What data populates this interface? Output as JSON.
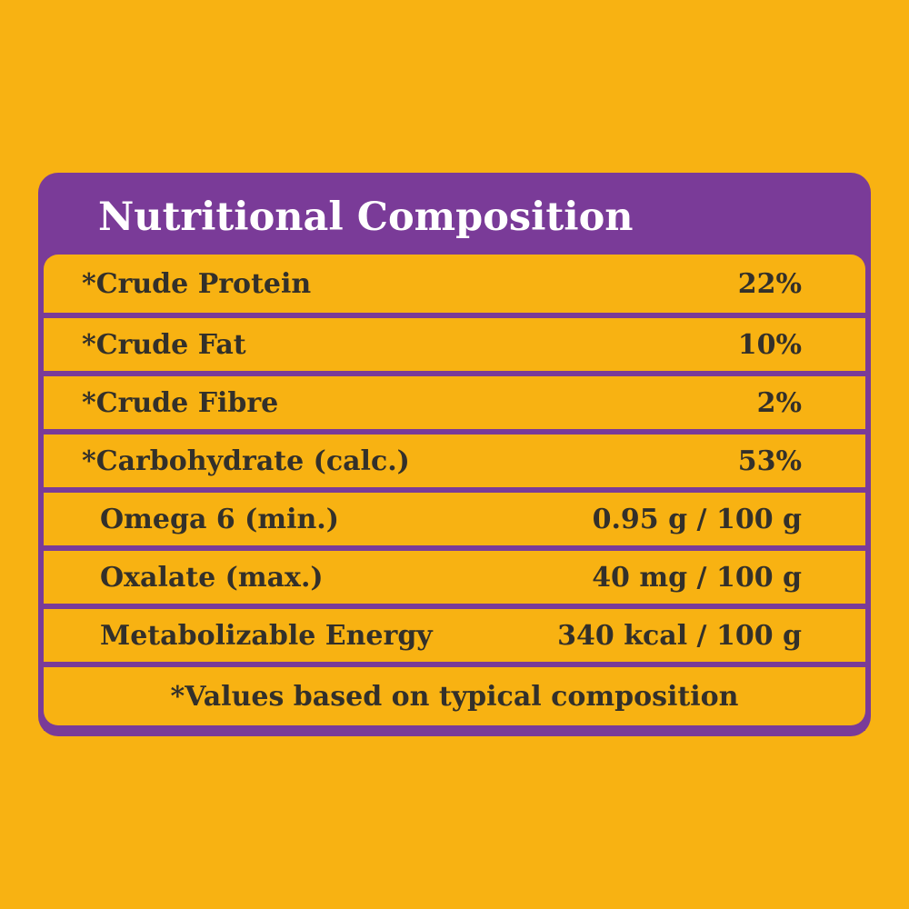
{
  "panel": {
    "title": "Nutritional Composition"
  },
  "rows": [
    {
      "label": "*Crude Protein",
      "value": "22%"
    },
    {
      "label": "*Crude Fat",
      "value": "10%"
    },
    {
      "label": "*Crude Fibre",
      "value": "2%"
    },
    {
      "label": "*Carbohydrate (calc.)",
      "value": "53%"
    },
    {
      "label": "Omega 6 (min.)",
      "value": "0.95 g / 100 g"
    },
    {
      "label": "Oxalate (max.)",
      "value": "40 mg / 100 g"
    },
    {
      "label": "Metabolizable Energy",
      "value": "340 kcal / 100 g"
    }
  ],
  "footnote": "*Values based on typical composition",
  "colors": {
    "background": "#F8B212",
    "panel": "#7A3B98",
    "text": "#33302A",
    "title": "#FFFFFF"
  }
}
